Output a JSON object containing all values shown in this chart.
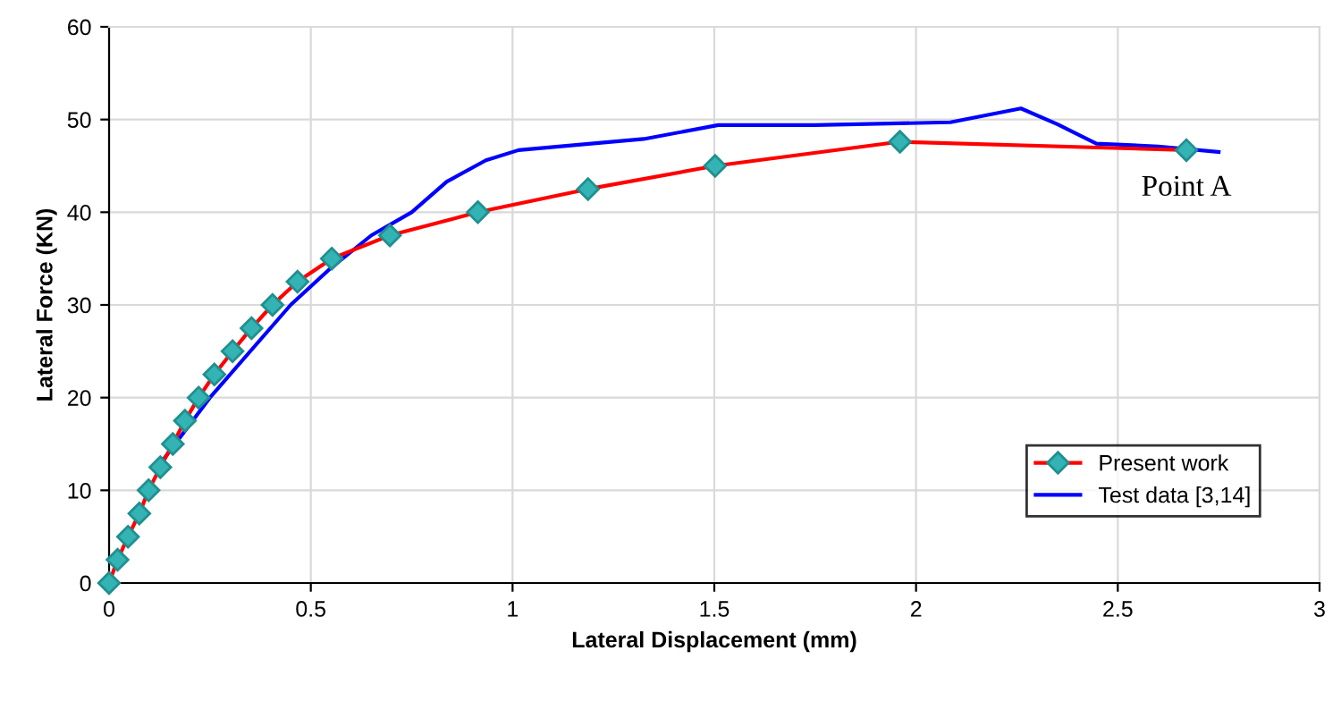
{
  "chart_data": {
    "type": "line",
    "xlabel": "Lateral Displacement (mm)",
    "ylabel": "Lateral Force (KN)",
    "xlim": [
      0,
      3
    ],
    "ylim": [
      0,
      60
    ],
    "xticks": [
      0,
      0.5,
      1,
      1.5,
      2,
      2.5,
      3
    ],
    "yticks": [
      0,
      10,
      20,
      30,
      40,
      50,
      60
    ],
    "grid": true,
    "legend": "bottom right",
    "series": [
      {
        "name": "Present work",
        "color": "#ff0000",
        "marker": "diamond",
        "x": [
          0,
          0.021,
          0.047,
          0.075,
          0.098,
          0.127,
          0.158,
          0.188,
          0.222,
          0.261,
          0.306,
          0.353,
          0.405,
          0.467,
          0.552,
          0.696,
          0.914,
          1.187,
          1.502,
          1.96,
          2.67
        ],
        "values": [
          0,
          2.5,
          5,
          7.5,
          10,
          12.5,
          15,
          17.5,
          20,
          22.5,
          25,
          27.5,
          30,
          32.5,
          35,
          37.5,
          40,
          42.5,
          45,
          47.6,
          46.7
        ]
      },
      {
        "name": "Test data [3,14]",
        "color": "#0000ff",
        "marker": "none",
        "x": [
          0.136,
          0.25,
          0.45,
          0.55,
          0.65,
          0.75,
          0.837,
          0.934,
          1.015,
          1.325,
          1.51,
          1.75,
          2.085,
          2.26,
          2.35,
          2.447,
          2.6,
          2.75
        ],
        "values": [
          13.4,
          20,
          30,
          34,
          37.5,
          40,
          43.3,
          45.6,
          46.7,
          47.9,
          49.4,
          49.4,
          49.7,
          51.2,
          49.5,
          47.4,
          47.1,
          46.5
        ]
      }
    ],
    "annotations": [
      {
        "text": "Point A",
        "x": 2.67,
        "y": 46.7
      }
    ]
  }
}
